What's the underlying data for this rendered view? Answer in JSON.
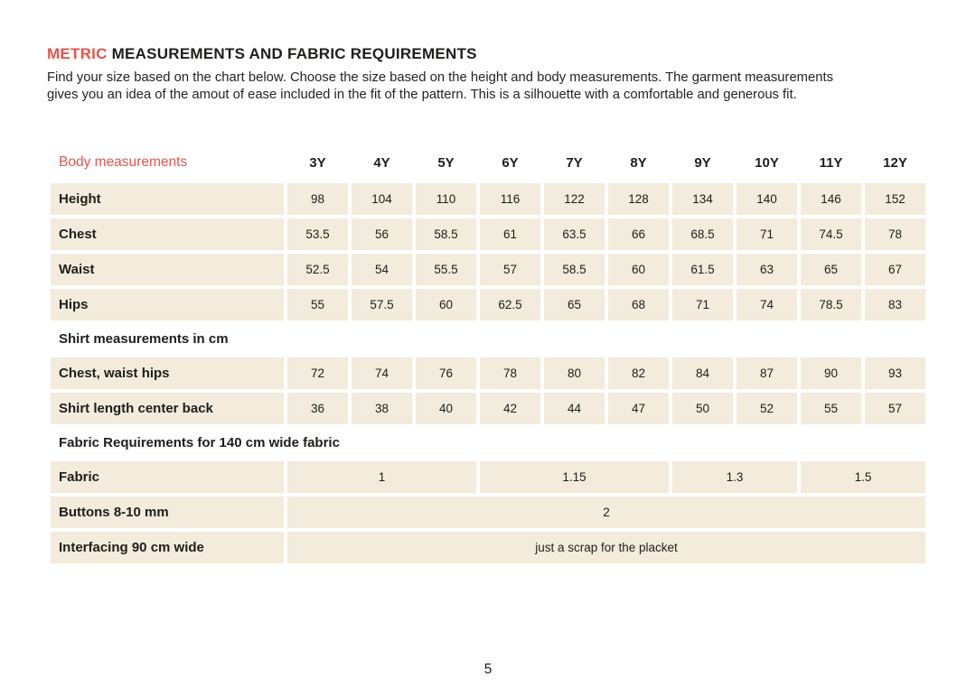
{
  "colors": {
    "accent": "#ea534a",
    "cell_bg": "#f3ebdb",
    "text": "#1e1e1c"
  },
  "page": {
    "title_accent": "METRIC",
    "title_rest": " MEASUREMENTS AND FABRIC REQUIREMENTS",
    "intro_line1": "Find your size based on the chart below. Choose the size based on the height and body measurements. The garment measurements",
    "intro_line2": "gives you an idea of the amout of ease included in the fit of the pattern. This is a silhouette with a comfortable and generous fit.",
    "page_number": "5"
  },
  "table": {
    "header_label": "Body measurements",
    "sizes": [
      "3Y",
      "4Y",
      "5Y",
      "6Y",
      "7Y",
      "8Y",
      "9Y",
      "10Y",
      "11Y",
      "12Y"
    ],
    "body_rows": [
      {
        "label": "Height",
        "values": [
          "98",
          "104",
          "110",
          "116",
          "122",
          "128",
          "134",
          "140",
          "146",
          "152"
        ]
      },
      {
        "label": "Chest",
        "values": [
          "53.5",
          "56",
          "58.5",
          "61",
          "63.5",
          "66",
          "68.5",
          "71",
          "74.5",
          "78"
        ]
      },
      {
        "label": "Waist",
        "values": [
          "52.5",
          "54",
          "55.5",
          "57",
          "58.5",
          "60",
          "61.5",
          "63",
          "65",
          "67"
        ]
      },
      {
        "label": "Hips",
        "values": [
          "55",
          "57.5",
          "60",
          "62.5",
          "65",
          "68",
          "71",
          "74",
          "78.5",
          "83"
        ]
      }
    ],
    "shirt_section_title": "Shirt measurements in cm",
    "shirt_rows": [
      {
        "label": "Chest, waist hips",
        "values": [
          "72",
          "74",
          "76",
          "78",
          "80",
          "82",
          "84",
          "87",
          "90",
          "93"
        ]
      },
      {
        "label": "Shirt length center back",
        "values": [
          "36",
          "38",
          "40",
          "42",
          "44",
          "47",
          "50",
          "52",
          "55",
          "57"
        ]
      }
    ],
    "fabric_section_title": "Fabric Requirements for 140 cm wide fabric",
    "fabric_row": {
      "label": "Fabric",
      "cells": [
        {
          "value": "1",
          "span": 3
        },
        {
          "value": "1.15",
          "span": 3
        },
        {
          "value": "1.3",
          "span": 2
        },
        {
          "value": "1.5",
          "span": 2
        }
      ]
    },
    "buttons_row": {
      "label": "Buttons 8-10 mm",
      "value": "2"
    },
    "interfacing_row": {
      "label": "Interfacing 90 cm wide",
      "value": "just a scrap for the placket"
    }
  }
}
